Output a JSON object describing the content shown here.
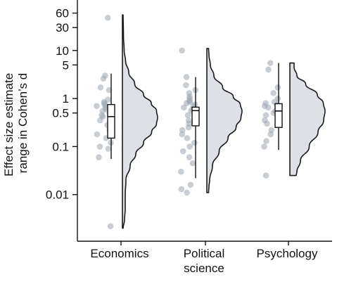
{
  "chart_data": {
    "type": "raincloud",
    "ylabel_lines": [
      "Effect size estimate",
      "range in Cohen’s d"
    ],
    "yscale": "log",
    "ylim": [
      0.0015,
      75
    ],
    "yticks": [
      0.01,
      0.1,
      0.5,
      1,
      5,
      10,
      30,
      60
    ],
    "ytick_labels": [
      "0.01",
      "0.1",
      "0.5",
      "1",
      "5",
      "10",
      "30",
      "60"
    ],
    "categories": [
      {
        "label_lines": [
          "Economics"
        ],
        "points": [
          48,
          3.0,
          2.6,
          1.7,
          1.5,
          0.95,
          0.85,
          0.8,
          0.75,
          0.7,
          0.65,
          0.6,
          0.55,
          0.5,
          0.45,
          0.42,
          0.35,
          0.3,
          0.28,
          0.25,
          0.22,
          0.18,
          0.15,
          0.12,
          0.1,
          0.09,
          0.06,
          0.0022
        ],
        "box": {
          "whisker_low": 0.055,
          "q1": 0.15,
          "median": 0.42,
          "q3": 0.75,
          "whisker_high": 3.3
        },
        "density_range": [
          0.002,
          55
        ],
        "density": [
          [
            0.002,
            0.02
          ],
          [
            0.003,
            0.06
          ],
          [
            0.005,
            0.08
          ],
          [
            0.01,
            0.08
          ],
          [
            0.02,
            0.1
          ],
          [
            0.04,
            0.22
          ],
          [
            0.07,
            0.38
          ],
          [
            0.12,
            0.6
          ],
          [
            0.2,
            0.83
          ],
          [
            0.3,
            0.97
          ],
          [
            0.4,
            1.0
          ],
          [
            0.55,
            0.97
          ],
          [
            0.8,
            0.82
          ],
          [
            1.2,
            0.6
          ],
          [
            2,
            0.35
          ],
          [
            3.5,
            0.18
          ],
          [
            6,
            0.09
          ],
          [
            10,
            0.05
          ],
          [
            20,
            0.03
          ],
          [
            55,
            0.02
          ]
        ]
      },
      {
        "label_lines": [
          "Political",
          "science"
        ],
        "points": [
          10,
          2.8,
          1.9,
          1.5,
          1.3,
          1.1,
          1.0,
          0.9,
          0.85,
          0.8,
          0.75,
          0.7,
          0.65,
          0.6,
          0.55,
          0.5,
          0.45,
          0.4,
          0.35,
          0.3,
          0.25,
          0.22,
          0.18,
          0.15,
          0.12,
          0.1,
          0.08,
          0.06,
          0.045,
          0.03,
          0.016,
          0.013,
          0.011
        ],
        "box": {
          "whisker_low": 0.022,
          "q1": 0.27,
          "median": 0.56,
          "q3": 0.66,
          "whisker_high": 2.8
        },
        "density_range": [
          0.011,
          11
        ],
        "density": [
          [
            0.011,
            0.05
          ],
          [
            0.015,
            0.06
          ],
          [
            0.02,
            0.08
          ],
          [
            0.04,
            0.16
          ],
          [
            0.08,
            0.35
          ],
          [
            0.15,
            0.6
          ],
          [
            0.25,
            0.83
          ],
          [
            0.4,
            0.97
          ],
          [
            0.55,
            1.0
          ],
          [
            0.75,
            0.95
          ],
          [
            1.1,
            0.75
          ],
          [
            1.7,
            0.45
          ],
          [
            3,
            0.2
          ],
          [
            5,
            0.1
          ],
          [
            8,
            0.06
          ],
          [
            11,
            0.05
          ]
        ]
      },
      {
        "label_lines": [
          "Psychology"
        ],
        "points": [
          5.5,
          4.0,
          1.7,
          1.3,
          1.0,
          0.85,
          0.8,
          0.75,
          0.7,
          0.65,
          0.55,
          0.5,
          0.45,
          0.35,
          0.3,
          0.22,
          0.18,
          0.13,
          0.1,
          0.025
        ],
        "box": {
          "whisker_low": 0.085,
          "q1": 0.25,
          "median": 0.55,
          "q3": 0.78,
          "whisker_high": 5.5
        },
        "density_range": [
          0.025,
          5.5
        ],
        "density": [
          [
            0.025,
            0.18
          ],
          [
            0.03,
            0.2
          ],
          [
            0.05,
            0.3
          ],
          [
            0.1,
            0.55
          ],
          [
            0.2,
            0.8
          ],
          [
            0.35,
            0.96
          ],
          [
            0.55,
            1.0
          ],
          [
            0.8,
            0.95
          ],
          [
            1.2,
            0.78
          ],
          [
            2,
            0.45
          ],
          [
            3,
            0.2
          ],
          [
            4.5,
            0.12
          ],
          [
            5.5,
            0.12
          ]
        ]
      }
    ]
  }
}
